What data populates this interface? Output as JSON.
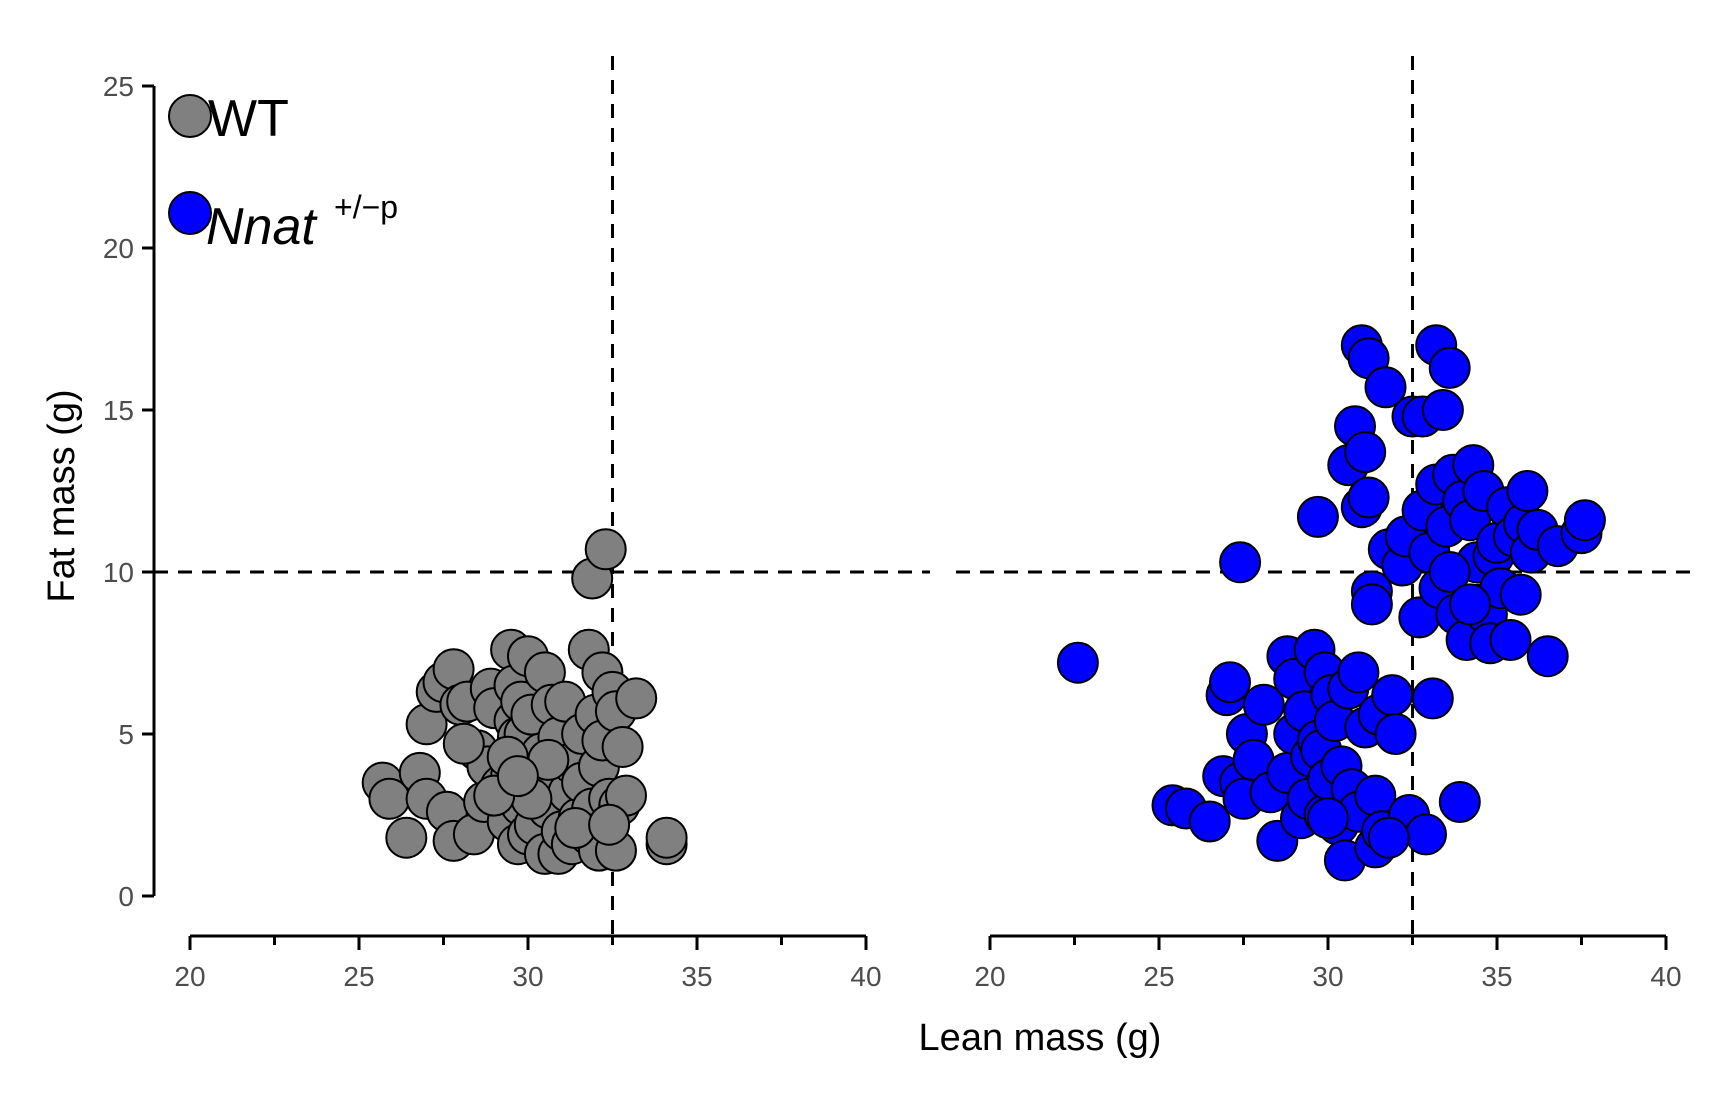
{
  "chart_data": {
    "type": "scatter",
    "title": "",
    "xlabel": "Lean mass (g)",
    "ylabel": "Fat mass (g)",
    "xlim": [
      20,
      40
    ],
    "ylim": [
      0,
      25
    ],
    "x_ticks": [
      "20",
      "25",
      "30",
      "35",
      "40"
    ],
    "y_ticks": [
      "0",
      "5",
      "10",
      "15",
      "20",
      "25"
    ],
    "reference_lines": {
      "x": 32.5,
      "y": 10
    },
    "grid": false,
    "legend_position": "top-left",
    "legend": [
      {
        "label": "WT",
        "color": "#808080"
      },
      {
        "label_base": "Nnat",
        "label_sup": "+/−p",
        "color": "#0000ff"
      }
    ],
    "panels": [
      {
        "series": "WT",
        "color": "#808080",
        "points": [
          [
            25.7,
            3.5
          ],
          [
            25.9,
            3.0
          ],
          [
            26.4,
            1.8
          ],
          [
            26.8,
            3.8
          ],
          [
            27.0,
            3.0
          ],
          [
            27.0,
            5.3
          ],
          [
            27.3,
            6.3
          ],
          [
            27.5,
            6.6
          ],
          [
            27.8,
            7.0
          ],
          [
            27.6,
            2.6
          ],
          [
            27.8,
            1.7
          ],
          [
            28.0,
            5.9
          ],
          [
            28.2,
            6.0
          ],
          [
            28.5,
            4.5
          ],
          [
            28.4,
            1.9
          ],
          [
            28.7,
            2.9
          ],
          [
            28.8,
            4.0
          ],
          [
            28.9,
            6.4
          ],
          [
            29.0,
            5.8
          ],
          [
            29.2,
            3.4
          ],
          [
            29.4,
            2.3
          ],
          [
            29.5,
            3.7
          ],
          [
            29.5,
            7.6
          ],
          [
            29.6,
            5.4
          ],
          [
            29.6,
            6.5
          ],
          [
            29.7,
            4.9
          ],
          [
            29.7,
            1.6
          ],
          [
            29.8,
            2.8
          ],
          [
            29.8,
            6.0
          ],
          [
            29.9,
            5.0
          ],
          [
            29.9,
            3.9
          ],
          [
            30.0,
            7.4
          ],
          [
            30.0,
            1.9
          ],
          [
            30.1,
            5.6
          ],
          [
            30.2,
            2.2
          ],
          [
            30.3,
            3.3
          ],
          [
            30.4,
            4.4
          ],
          [
            30.5,
            6.9
          ],
          [
            30.5,
            1.3
          ],
          [
            30.6,
            2.7
          ],
          [
            30.7,
            5.9
          ],
          [
            30.8,
            3.8
          ],
          [
            30.9,
            4.9
          ],
          [
            30.9,
            1.3
          ],
          [
            31.0,
            2.0
          ],
          [
            31.1,
            6.0
          ],
          [
            31.2,
            3.2
          ],
          [
            31.3,
            4.1
          ],
          [
            31.3,
            1.6
          ],
          [
            31.5,
            2.4
          ],
          [
            31.6,
            3.5
          ],
          [
            31.6,
            5.0
          ],
          [
            31.8,
            7.6
          ],
          [
            31.8,
            1.9
          ],
          [
            31.9,
            9.8
          ],
          [
            31.9,
            2.7
          ],
          [
            32.0,
            5.6
          ],
          [
            32.1,
            4.0
          ],
          [
            32.1,
            1.4
          ],
          [
            32.2,
            6.9
          ],
          [
            32.2,
            4.8
          ],
          [
            32.3,
            10.7
          ],
          [
            32.4,
            3.0
          ],
          [
            32.5,
            6.3
          ],
          [
            32.6,
            5.7
          ],
          [
            32.6,
            1.4
          ],
          [
            32.7,
            2.8
          ],
          [
            32.8,
            4.6
          ],
          [
            32.9,
            3.1
          ],
          [
            33.2,
            6.1
          ],
          [
            34.1,
            1.6
          ],
          [
            34.1,
            1.8
          ],
          [
            29.4,
            4.3
          ],
          [
            28.1,
            4.7
          ],
          [
            30.1,
            3.0
          ],
          [
            31.4,
            2.1
          ],
          [
            29.0,
            3.1
          ],
          [
            30.6,
            4.2
          ],
          [
            32.4,
            2.2
          ],
          [
            29.7,
            3.7
          ]
        ]
      },
      {
        "series": "Nnat +/−p",
        "color": "#0000ff",
        "points": [
          [
            22.6,
            7.2
          ],
          [
            25.4,
            2.8
          ],
          [
            25.8,
            2.7
          ],
          [
            26.5,
            2.3
          ],
          [
            26.9,
            3.7
          ],
          [
            27.0,
            6.2
          ],
          [
            27.1,
            6.6
          ],
          [
            27.4,
            3.5
          ],
          [
            27.4,
            10.3
          ],
          [
            27.5,
            3.0
          ],
          [
            27.6,
            5.0
          ],
          [
            27.8,
            4.2
          ],
          [
            28.1,
            5.9
          ],
          [
            28.3,
            3.2
          ],
          [
            28.5,
            1.7
          ],
          [
            28.8,
            7.4
          ],
          [
            28.8,
            3.8
          ],
          [
            29.0,
            6.7
          ],
          [
            29.0,
            5.0
          ],
          [
            29.2,
            2.4
          ],
          [
            29.3,
            5.7
          ],
          [
            29.4,
            3.0
          ],
          [
            29.5,
            4.3
          ],
          [
            29.6,
            7.6
          ],
          [
            29.7,
            11.7
          ],
          [
            29.7,
            4.8
          ],
          [
            29.8,
            4.5
          ],
          [
            29.9,
            6.9
          ],
          [
            29.9,
            2.5
          ],
          [
            30.0,
            3.6
          ],
          [
            30.1,
            6.2
          ],
          [
            30.2,
            5.4
          ],
          [
            30.3,
            2.2
          ],
          [
            30.4,
            4.0
          ],
          [
            30.5,
            1.1
          ],
          [
            30.6,
            13.3
          ],
          [
            30.6,
            6.4
          ],
          [
            30.7,
            3.3
          ],
          [
            30.8,
            14.5
          ],
          [
            30.9,
            6.9
          ],
          [
            30.9,
            2.6
          ],
          [
            31.0,
            12.0
          ],
          [
            31.0,
            17.0
          ],
          [
            31.1,
            13.7
          ],
          [
            31.1,
            5.2
          ],
          [
            31.2,
            12.3
          ],
          [
            31.2,
            16.6
          ],
          [
            31.3,
            9.4
          ],
          [
            31.3,
            9.0
          ],
          [
            31.4,
            3.1
          ],
          [
            31.4,
            1.5
          ],
          [
            31.5,
            5.6
          ],
          [
            31.6,
            2.0
          ],
          [
            31.7,
            15.7
          ],
          [
            31.8,
            10.7
          ],
          [
            31.9,
            6.2
          ],
          [
            32.0,
            5.0
          ],
          [
            32.2,
            10.2
          ],
          [
            32.3,
            11.1
          ],
          [
            32.4,
            2.5
          ],
          [
            32.5,
            14.8
          ],
          [
            32.7,
            8.6
          ],
          [
            32.8,
            14.8
          ],
          [
            32.8,
            11.9
          ],
          [
            32.9,
            1.9
          ],
          [
            33.0,
            10.6
          ],
          [
            33.1,
            6.1
          ],
          [
            33.2,
            17.0
          ],
          [
            33.2,
            12.7
          ],
          [
            33.3,
            9.5
          ],
          [
            33.4,
            15.0
          ],
          [
            33.5,
            11.4
          ],
          [
            33.6,
            16.3
          ],
          [
            33.7,
            13.0
          ],
          [
            33.8,
            8.7
          ],
          [
            33.9,
            2.9
          ],
          [
            34.0,
            12.2
          ],
          [
            34.1,
            7.9
          ],
          [
            34.2,
            11.6
          ],
          [
            34.3,
            13.3
          ],
          [
            34.4,
            10.3
          ],
          [
            34.5,
            9.0
          ],
          [
            34.6,
            12.5
          ],
          [
            34.7,
            8.7
          ],
          [
            34.8,
            7.8
          ],
          [
            34.9,
            10.5
          ],
          [
            35.0,
            10.9
          ],
          [
            35.1,
            9.5
          ],
          [
            35.3,
            12.0
          ],
          [
            35.4,
            7.9
          ],
          [
            35.5,
            11.1
          ],
          [
            35.7,
            9.3
          ],
          [
            35.8,
            11.5
          ],
          [
            35.9,
            12.5
          ],
          [
            36.0,
            10.6
          ],
          [
            36.2,
            11.3
          ],
          [
            36.5,
            7.4
          ],
          [
            36.8,
            10.8
          ],
          [
            37.5,
            11.2
          ],
          [
            37.6,
            11.6
          ],
          [
            30.0,
            2.4
          ],
          [
            31.8,
            1.8
          ],
          [
            33.6,
            10.0
          ],
          [
            34.2,
            9.0
          ]
        ]
      }
    ]
  }
}
